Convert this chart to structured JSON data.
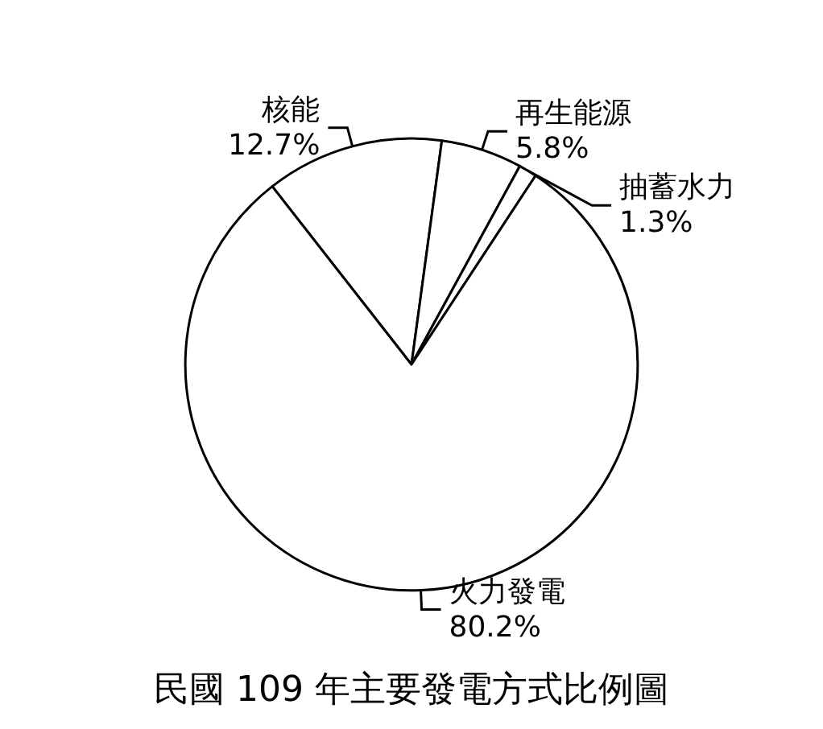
{
  "chart_data": {
    "type": "pie",
    "title": "民國 109 年主要發電方式比例圖",
    "categories": [
      "核能",
      "再生能源",
      "抽蓄水力",
      "火力發電"
    ],
    "values": [
      12.7,
      5.8,
      1.3,
      80.2
    ],
    "value_labels": [
      "12.7%",
      "5.8%",
      "1.3%",
      "80.2%"
    ],
    "colors": [
      "#ffffff",
      "#ffffff",
      "#ffffff",
      "#ffffff"
    ],
    "legend": false
  }
}
